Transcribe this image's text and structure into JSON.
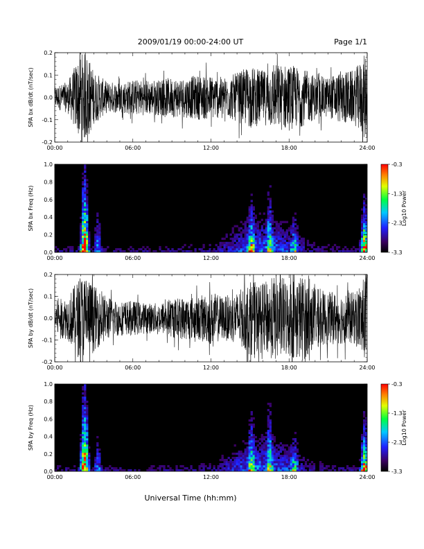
{
  "header": {
    "title": "2009/01/19  00:00-24:00 UT",
    "page": "Page 1/1"
  },
  "xlabel": "Universal Time (hh:mm)",
  "time_ticks": [
    "00:00",
    "06:00",
    "12:00",
    "18:00",
    "24:00"
  ],
  "colors": {
    "background": "#ffffff",
    "trace": "#000000",
    "spectrogram_bg": "#000000"
  },
  "chart_data": [
    {
      "type": "line",
      "ylabel": "SPA bx dB/dt (nT/sec)",
      "xlim": [
        0,
        24
      ],
      "ylim": [
        -0.2,
        0.2
      ],
      "yticks": [
        -0.2,
        -0.1,
        0.0,
        0.1,
        0.2
      ],
      "ytick_labels": [
        "-0.2",
        "-0.1",
        "0.0",
        "0.1",
        "0.2"
      ],
      "envelope": {
        "hours": [
          0,
          1,
          2,
          2.5,
          3,
          4,
          5,
          6,
          7,
          8,
          9,
          10,
          11,
          12,
          13,
          14,
          15,
          16,
          17,
          18,
          19,
          20,
          21,
          22,
          23,
          23.9,
          24
        ],
        "amplitude": [
          0.05,
          0.07,
          0.2,
          0.2,
          0.12,
          0.07,
          0.07,
          0.08,
          0.08,
          0.08,
          0.09,
          0.09,
          0.1,
          0.1,
          0.09,
          0.11,
          0.14,
          0.12,
          0.15,
          0.15,
          0.13,
          0.1,
          0.09,
          0.12,
          0.12,
          0.2,
          0.2
        ]
      }
    },
    {
      "type": "heatmap",
      "ylabel": "SPA bx Freq (Hz)",
      "xlim": [
        0,
        24
      ],
      "ylim": [
        0,
        1
      ],
      "yticks": [
        0.0,
        0.2,
        0.4,
        0.6,
        0.8,
        1.0
      ],
      "ytick_labels": [
        "0.0",
        "0.2",
        "0.4",
        "0.6",
        "0.8",
        "1.0"
      ],
      "colorbar": {
        "label": "Log10 Power",
        "ticks": [
          "-0.3",
          "-1.3",
          "-2.3",
          "-3.3"
        ],
        "range": [
          -3.3,
          -0.3
        ]
      },
      "activity": [
        {
          "center_hour": 2.3,
          "fmax": 0.95,
          "strength": 1.0
        },
        {
          "center_hour": 3.3,
          "fmax": 0.6,
          "strength": 0.4
        },
        {
          "center_hour": 15.1,
          "fmax": 0.6,
          "strength": 0.8
        },
        {
          "center_hour": 16.5,
          "fmax": 0.7,
          "strength": 0.7
        },
        {
          "center_hour": 18.4,
          "fmax": 0.4,
          "strength": 0.6
        },
        {
          "center_hour": 23.8,
          "fmax": 0.6,
          "strength": 0.9
        }
      ]
    },
    {
      "type": "line",
      "ylabel": "SPA by dB/dt (nT/sec)",
      "xlim": [
        0,
        24
      ],
      "ylim": [
        -0.2,
        0.2
      ],
      "yticks": [
        -0.2,
        -0.1,
        0.0,
        0.1,
        0.2
      ],
      "ytick_labels": [
        "-0.2",
        "-0.1",
        "0.0",
        "0.1",
        "0.2"
      ],
      "envelope": {
        "hours": [
          0,
          1,
          2,
          2.5,
          3,
          4,
          5,
          6,
          7,
          8,
          9,
          10,
          11,
          12,
          13,
          14,
          15,
          16,
          17,
          18,
          19,
          20,
          21,
          22,
          23,
          23.9,
          24
        ],
        "amplitude": [
          0.08,
          0.1,
          0.2,
          0.2,
          0.15,
          0.1,
          0.08,
          0.08,
          0.07,
          0.07,
          0.09,
          0.1,
          0.1,
          0.12,
          0.1,
          0.12,
          0.17,
          0.16,
          0.2,
          0.18,
          0.2,
          0.14,
          0.12,
          0.12,
          0.12,
          0.2,
          0.2
        ]
      }
    },
    {
      "type": "heatmap",
      "ylabel": "SPA by Freq (Hz)",
      "xlim": [
        0,
        24
      ],
      "ylim": [
        0,
        1
      ],
      "yticks": [
        0.0,
        0.2,
        0.4,
        0.6,
        0.8,
        1.0
      ],
      "ytick_labels": [
        "0.0",
        "0.2",
        "0.4",
        "0.6",
        "0.8",
        "1.0"
      ],
      "colorbar": {
        "label": "Log10 Power",
        "ticks": [
          "-0.3",
          "-1.3",
          "-2.3",
          "-3.3"
        ],
        "range": [
          -3.3,
          -0.3
        ]
      },
      "activity": [
        {
          "center_hour": 2.3,
          "fmax": 1.0,
          "strength": 1.0
        },
        {
          "center_hour": 3.3,
          "fmax": 0.5,
          "strength": 0.4
        },
        {
          "center_hour": 15.1,
          "fmax": 0.62,
          "strength": 0.8
        },
        {
          "center_hour": 16.5,
          "fmax": 0.75,
          "strength": 0.7
        },
        {
          "center_hour": 18.4,
          "fmax": 0.45,
          "strength": 0.6
        },
        {
          "center_hour": 23.8,
          "fmax": 0.6,
          "strength": 0.9
        }
      ]
    }
  ]
}
